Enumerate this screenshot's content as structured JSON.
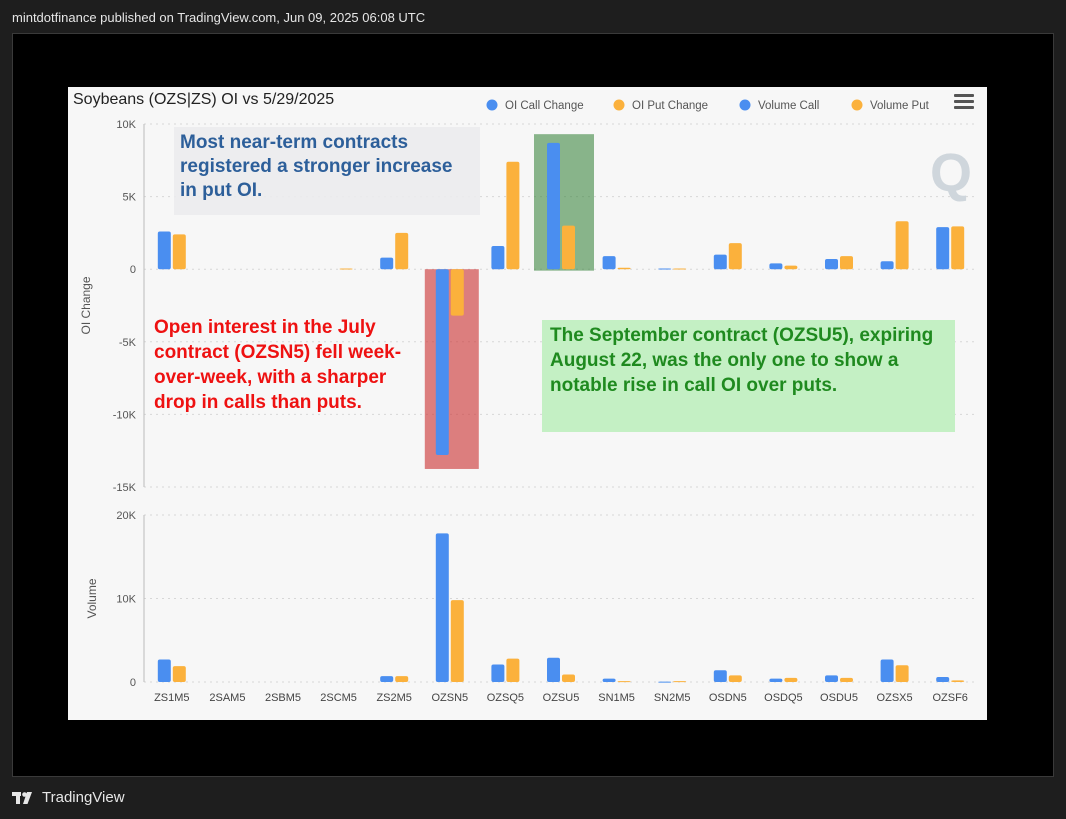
{
  "header": {
    "publisher_text": "mintdotfinance published on TradingView.com, Jun 09, 2025 06:08 UTC"
  },
  "footer": {
    "brand": "TradingView",
    "logo_icon": "tradingview-logo-icon"
  },
  "chart_data": [
    {
      "type": "bar",
      "title": "Soybeans (OZS|ZS) OI vs 5/29/2025",
      "ylabel": "OI Change",
      "ylim": [
        -15000,
        10000
      ],
      "yticks": [
        10000,
        5000,
        0,
        -5000,
        -10000,
        -15000
      ],
      "ytick_labels": [
        "10K",
        "5K",
        "0",
        "-5K",
        "-10K",
        "-15K"
      ],
      "legend_position": "top-right",
      "categories": [
        "ZS1M5",
        "2SAM5",
        "2SBM5",
        "2SCM5",
        "ZS2M5",
        "OZSN5",
        "OZSQ5",
        "OZSU5",
        "SN1M5",
        "SN2M5",
        "OSDN5",
        "OSDQ5",
        "OSDU5",
        "OZSX5",
        "OZSF6"
      ],
      "series": [
        {
          "name": "OI Call Change",
          "color": "#4a8ef0",
          "values": [
            2600,
            0,
            0,
            0,
            800,
            -12800,
            1600,
            8700,
            900,
            50,
            1000,
            400,
            700,
            550,
            2900
          ]
        },
        {
          "name": "OI Put Change",
          "color": "#fbb13c",
          "values": [
            2400,
            0,
            0,
            50,
            2500,
            -3200,
            7400,
            3000,
            100,
            50,
            1800,
            250,
            900,
            3300,
            2950
          ]
        }
      ],
      "grid": true
    },
    {
      "type": "bar",
      "ylabel": "Volume",
      "ylim": [
        0,
        20000
      ],
      "yticks": [
        20000,
        10000,
        0
      ],
      "ytick_labels": [
        "20K",
        "10K",
        "0"
      ],
      "categories": [
        "ZS1M5",
        "2SAM5",
        "2SBM5",
        "2SCM5",
        "ZS2M5",
        "OZSN5",
        "OZSQ5",
        "OZSU5",
        "SN1M5",
        "SN2M5",
        "OSDN5",
        "OSDQ5",
        "OSDU5",
        "OZSX5",
        "OZSF6"
      ],
      "series": [
        {
          "name": "Volume Call",
          "color": "#4a8ef0",
          "values": [
            2700,
            0,
            0,
            0,
            700,
            17800,
            2100,
            2900,
            400,
            50,
            1400,
            400,
            800,
            2700,
            600
          ]
        },
        {
          "name": "Volume Put",
          "color": "#fbb13c",
          "values": [
            1900,
            0,
            0,
            0,
            700,
            9800,
            2800,
            900,
            100,
            100,
            800,
            500,
            500,
            2000,
            200
          ]
        }
      ],
      "grid": true
    }
  ],
  "annotations": {
    "blue_note": "Most near-term contracts registered a stronger increase in put OI.",
    "red_note": "Open interest in the July contract (OZSN5) fell week-over-week, with a sharper drop in calls than puts.",
    "green_note": "The September contract (OZSU5), expiring August 22, was the only one to show a notable rise in call OI over puts."
  },
  "highlights": {
    "red_box_color": "#cc3333",
    "green_box_color": "#2e7d32"
  },
  "watermark": "Q",
  "menu_icon": "hamburger-menu-icon"
}
